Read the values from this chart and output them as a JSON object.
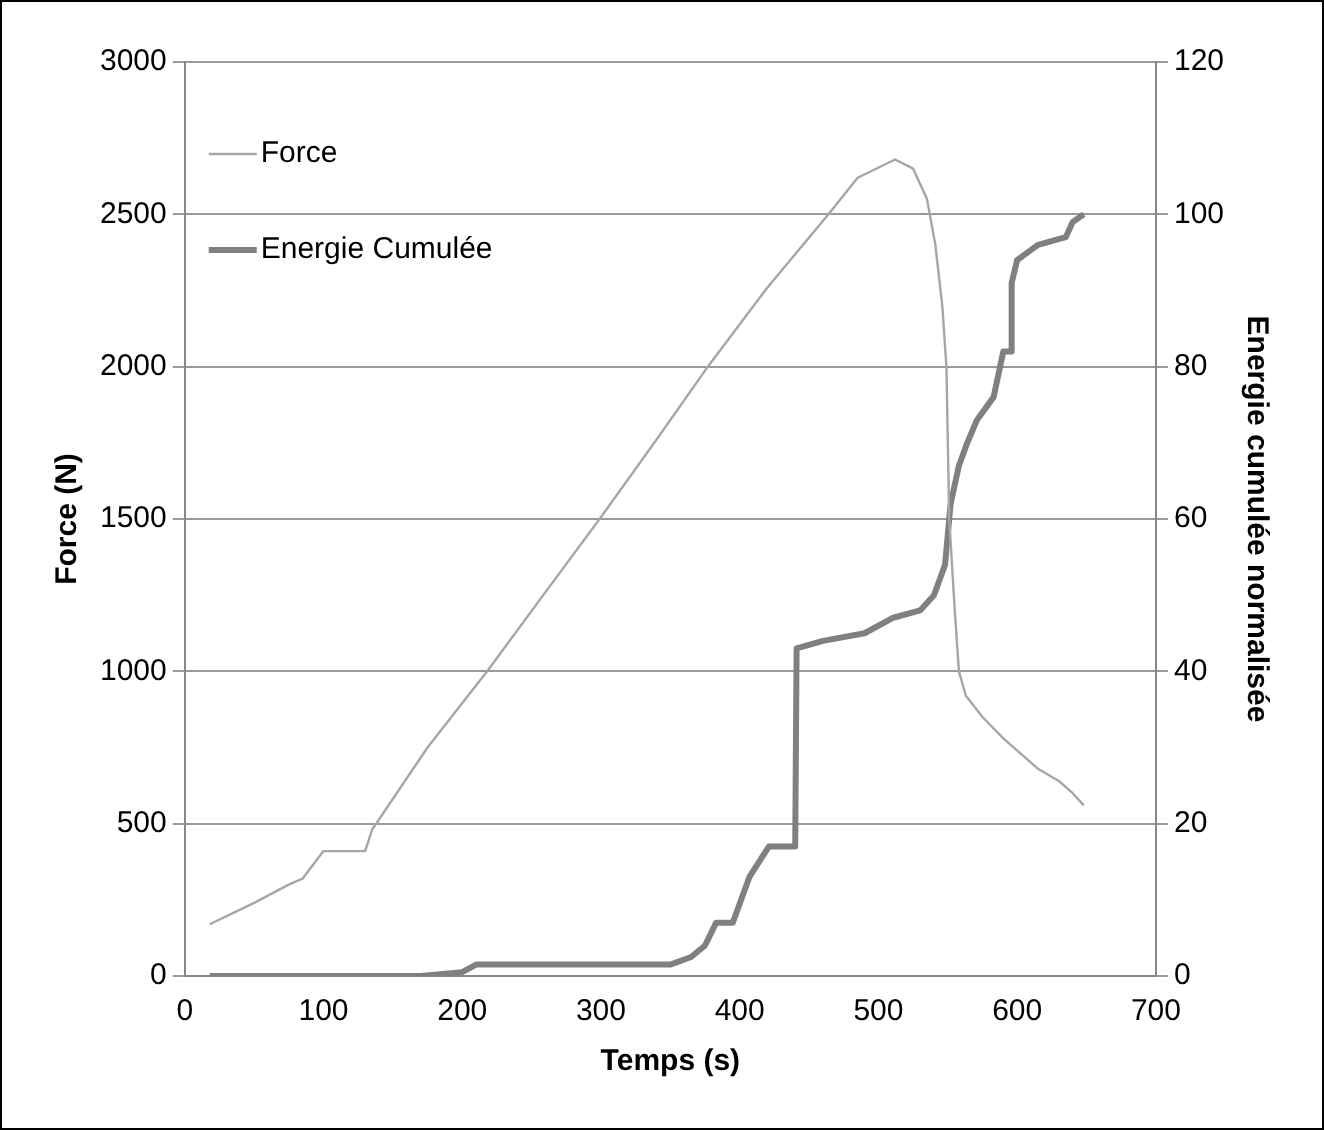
{
  "chart_data": {
    "type": "line",
    "xlabel": "Temps (s)",
    "ylabel": "Force (N)",
    "y2label": "Energie cumulée normalisée",
    "xlim": [
      0,
      700
    ],
    "xticks": [
      0,
      100,
      200,
      300,
      400,
      500,
      600,
      700
    ],
    "ylim": [
      0,
      3000
    ],
    "yticks": [
      0,
      500,
      1000,
      1500,
      2000,
      2500,
      3000
    ],
    "y2lim": [
      0,
      120
    ],
    "y2ticks": [
      0,
      20,
      40,
      60,
      80,
      100,
      120
    ],
    "grid": "y",
    "legend": "top left",
    "marker": "none",
    "series": [
      {
        "name": "Force",
        "color": "#a6a6a6",
        "axis": "y",
        "x": [
          18,
          50,
          75,
          85,
          100,
          130,
          135,
          175,
          218,
          260,
          299,
          340,
          377,
          420,
          464,
          485,
          512,
          525,
          535,
          541,
          546,
          549,
          551,
          555,
          558,
          563,
          575,
          590,
          600,
          615,
          630,
          640,
          648
        ],
        "values": [
          170,
          240,
          300,
          320,
          410,
          410,
          480,
          750,
          1000,
          1260,
          1500,
          1760,
          2000,
          2260,
          2500,
          2620,
          2680,
          2650,
          2550,
          2400,
          2200,
          2000,
          1500,
          1200,
          1000,
          920,
          850,
          780,
          740,
          680,
          640,
          600,
          560
        ]
      },
      {
        "name": "Energie Cumulée",
        "color": "#808080",
        "axis": "y2",
        "x": [
          18,
          170,
          200,
          210,
          350,
          365,
          375,
          383,
          395,
          407,
          421,
          440,
          441,
          460,
          490,
          510,
          530,
          540,
          548,
          552,
          558,
          564,
          571,
          583,
          590,
          595,
          596,
          600,
          615,
          635,
          640,
          648
        ],
        "values": [
          0,
          0,
          0.5,
          1.5,
          1.5,
          2.5,
          4,
          7,
          7,
          13,
          17,
          17,
          43,
          44,
          45,
          47,
          48,
          50,
          54,
          62,
          67,
          70,
          73,
          76,
          82,
          82,
          91,
          94,
          96,
          97,
          99,
          100
        ]
      }
    ]
  }
}
